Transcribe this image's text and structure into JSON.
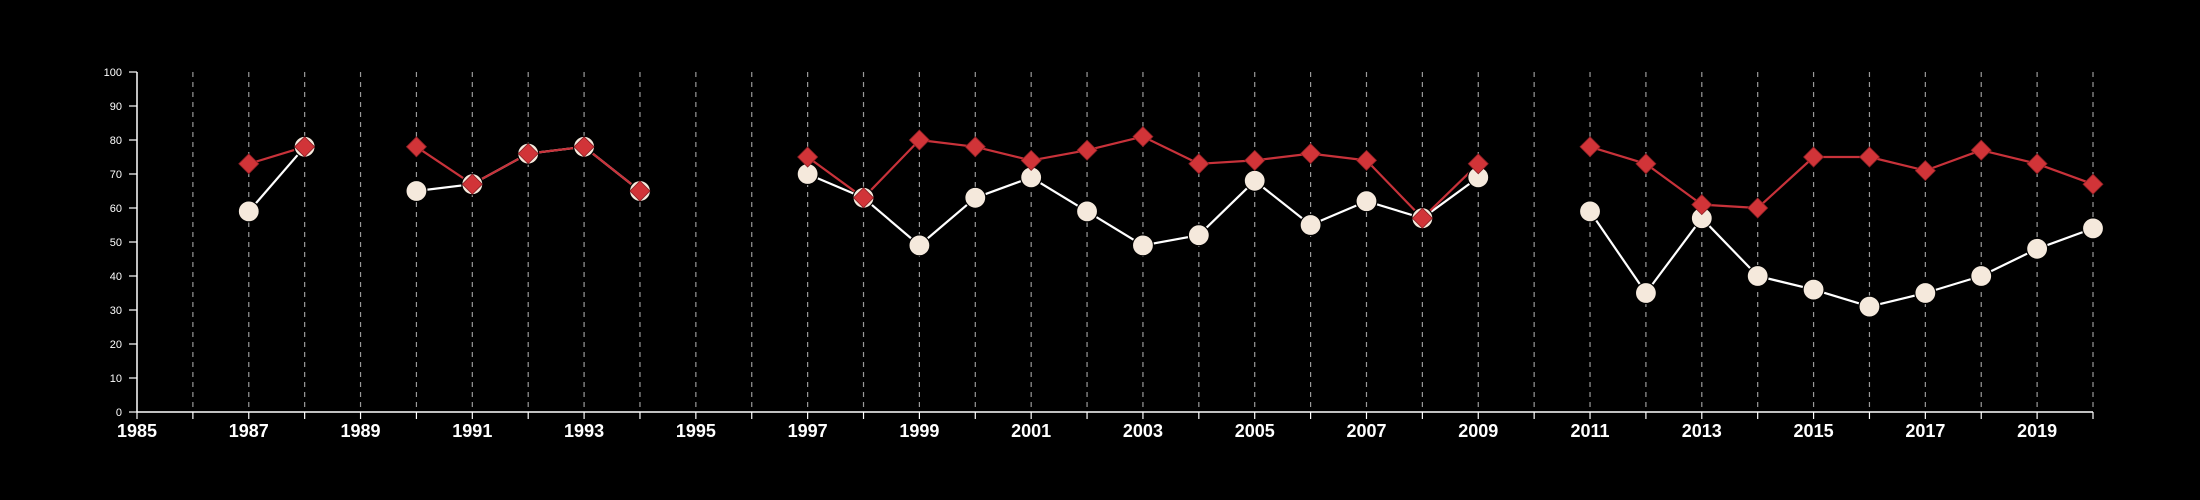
{
  "chart_data": {
    "type": "line",
    "title": "",
    "xlabel": "",
    "ylabel": "",
    "xlim": [
      1985,
      2020
    ],
    "ylim": [
      0,
      100
    ],
    "x_ticks": [
      1985,
      1987,
      1989,
      1991,
      1993,
      1995,
      1997,
      1999,
      2001,
      2003,
      2005,
      2007,
      2009,
      2011,
      2013,
      2015,
      2017,
      2019
    ],
    "x_tick_labels": [
      "1985",
      "1987",
      "1989",
      "1991",
      "1993",
      "1995",
      "1997",
      "1999",
      "2001",
      "2003",
      "2005",
      "2007",
      "2009",
      "2011",
      "2013",
      "2015",
      "2017",
      "2019"
    ],
    "y_ticks": [
      0,
      10,
      20,
      30,
      40,
      50,
      60,
      70,
      80,
      90,
      100
    ],
    "y_tick_labels": [
      "0",
      "10",
      "20",
      "30",
      "40",
      "50",
      "60",
      "70",
      "80",
      "90",
      "100"
    ],
    "grid": "vertical dashed lines at every year",
    "legend": "none",
    "series": [
      {
        "key": "white_circles",
        "color": "#ffffff",
        "marker_fill": "#f5e9dc",
        "marker": "circle",
        "points": [
          {
            "x": 1987,
            "y": 59
          },
          {
            "x": 1988,
            "y": 78
          },
          {
            "x": 1990,
            "y": 65
          },
          {
            "x": 1991,
            "y": 67
          },
          {
            "x": 1992,
            "y": 76
          },
          {
            "x": 1993,
            "y": 78
          },
          {
            "x": 1994,
            "y": 65
          },
          {
            "x": 1997,
            "y": 70
          },
          {
            "x": 1998,
            "y": 63
          },
          {
            "x": 1999,
            "y": 49
          },
          {
            "x": 2000,
            "y": 63
          },
          {
            "x": 2001,
            "y": 69
          },
          {
            "x": 2002,
            "y": 59
          },
          {
            "x": 2003,
            "y": 49
          },
          {
            "x": 2004,
            "y": 52
          },
          {
            "x": 2005,
            "y": 68
          },
          {
            "x": 2006,
            "y": 55
          },
          {
            "x": 2007,
            "y": 62
          },
          {
            "x": 2008,
            "y": 57
          },
          {
            "x": 2009,
            "y": 69
          },
          {
            "x": 2011,
            "y": 59
          },
          {
            "x": 2012,
            "y": 35
          },
          {
            "x": 2013,
            "y": 57
          },
          {
            "x": 2014,
            "y": 40
          },
          {
            "x": 2015,
            "y": 36
          },
          {
            "x": 2016,
            "y": 31
          },
          {
            "x": 2017,
            "y": 35
          },
          {
            "x": 2018,
            "y": 40
          },
          {
            "x": 2019,
            "y": 48
          },
          {
            "x": 2020,
            "y": 54
          }
        ]
      },
      {
        "key": "red_diamonds",
        "color": "#c8323a",
        "marker_fill": "#d13438",
        "marker": "diamond",
        "points": [
          {
            "x": 1987,
            "y": 73
          },
          {
            "x": 1988,
            "y": 78
          },
          {
            "x": 1990,
            "y": 78
          },
          {
            "x": 1991,
            "y": 67
          },
          {
            "x": 1992,
            "y": 76
          },
          {
            "x": 1993,
            "y": 78
          },
          {
            "x": 1994,
            "y": 65
          },
          {
            "x": 1997,
            "y": 75
          },
          {
            "x": 1998,
            "y": 63
          },
          {
            "x": 1999,
            "y": 80
          },
          {
            "x": 2000,
            "y": 78
          },
          {
            "x": 2001,
            "y": 74
          },
          {
            "x": 2002,
            "y": 77
          },
          {
            "x": 2003,
            "y": 81
          },
          {
            "x": 2004,
            "y": 73
          },
          {
            "x": 2005,
            "y": 74
          },
          {
            "x": 2006,
            "y": 76
          },
          {
            "x": 2007,
            "y": 74
          },
          {
            "x": 2008,
            "y": 57
          },
          {
            "x": 2009,
            "y": 73
          },
          {
            "x": 2011,
            "y": 78
          },
          {
            "x": 2012,
            "y": 73
          },
          {
            "x": 2013,
            "y": 61
          },
          {
            "x": 2014,
            "y": 60
          },
          {
            "x": 2015,
            "y": 75
          },
          {
            "x": 2016,
            "y": 75
          },
          {
            "x": 2017,
            "y": 71
          },
          {
            "x": 2018,
            "y": 77
          },
          {
            "x": 2019,
            "y": 73
          },
          {
            "x": 2020,
            "y": 67
          }
        ]
      }
    ]
  }
}
